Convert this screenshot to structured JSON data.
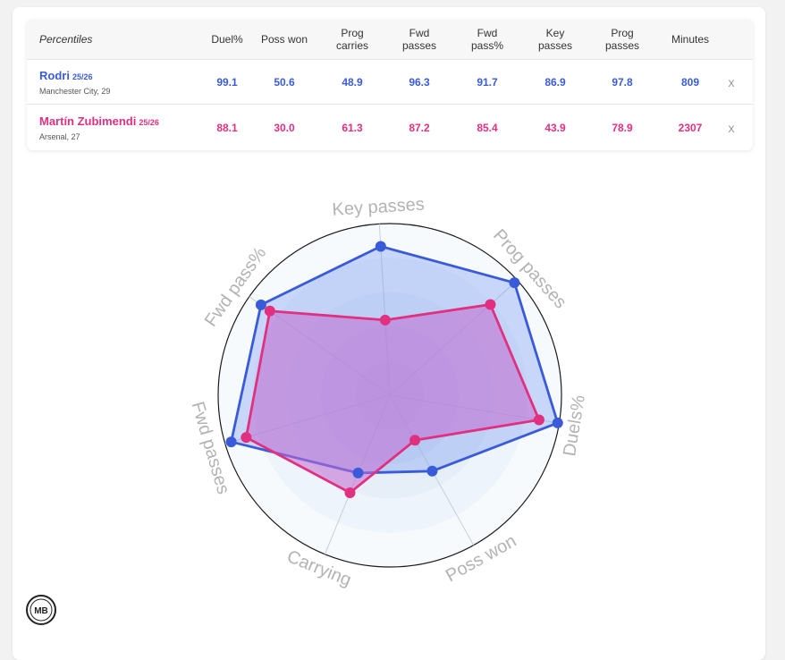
{
  "table": {
    "header_label": "Percentiles",
    "columns": [
      "Duel%",
      "Poss won",
      "Prog carries",
      "Fwd passes",
      "Fwd pass%",
      "Key passes",
      "Prog passes",
      "Minutes"
    ],
    "players": [
      {
        "name": "Rodri",
        "season": "25/26",
        "club": "Manchester City, 29",
        "values": [
          "99.1",
          "50.6",
          "48.9",
          "96.3",
          "91.7",
          "86.9",
          "97.8",
          "809"
        ],
        "remove_label": "x",
        "color": "#3a5bd9"
      },
      {
        "name": "Martín Zubimendi",
        "season": "25/26",
        "club": "Arsenal, 27",
        "values": [
          "88.1",
          "30.0",
          "61.3",
          "87.2",
          "85.4",
          "43.9",
          "78.9",
          "2307"
        ],
        "remove_label": "x",
        "color": "#e0307f"
      }
    ]
  },
  "chart_data": {
    "type": "radar",
    "axes": [
      "Key passes",
      "Prog passes",
      "Duels%",
      "Poss won",
      "Carrying",
      "Fwd passes",
      "Fwd pass%"
    ],
    "range": [
      0,
      100
    ],
    "grid": true,
    "series": [
      {
        "name": "Rodri",
        "values": [
          86.9,
          97.8,
          99.1,
          50.6,
          48.9,
          96.3,
          91.7
        ],
        "color": "#3a5bd9",
        "fill": "#6f95f2"
      },
      {
        "name": "Martín Zubimendi",
        "values": [
          43.9,
          78.9,
          88.1,
          30.0,
          61.3,
          87.2,
          85.4
        ],
        "color": "#e0307f",
        "fill": "#c26ad0"
      }
    ]
  },
  "logo": {
    "text": "MB",
    "icon": "mb-logo-icon"
  }
}
